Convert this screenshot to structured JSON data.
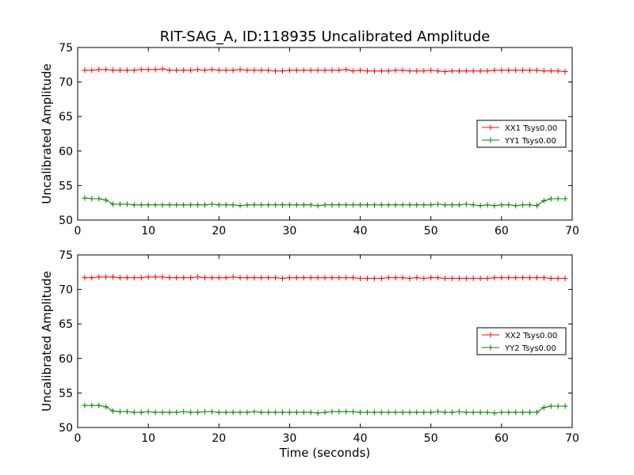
{
  "figure_title": "RIT-SAG_A, ID:118935 Uncalibrated Amplitude",
  "colors": {
    "xx": "#ff0000",
    "yy": "#008000"
  },
  "chart_data": [
    {
      "type": "line",
      "title": "RIT-SAG_A, ID:118935 Uncalibrated Amplitude",
      "xlabel": "",
      "ylabel": "Uncalibrated Amplitude",
      "xlim": [
        0,
        70
      ],
      "ylim": [
        50,
        75
      ],
      "xticks": [
        0,
        10,
        20,
        30,
        40,
        50,
        60,
        70
      ],
      "yticks": [
        50,
        55,
        60,
        65,
        70,
        75
      ],
      "legend_position": "right",
      "grid": false,
      "series": [
        {
          "name": "XX1 Tsys0.00",
          "color": "#ff0000",
          "x": [
            1,
            2,
            3,
            4,
            5,
            6,
            7,
            8,
            9,
            10,
            11,
            12,
            13,
            14,
            15,
            16,
            17,
            18,
            19,
            20,
            21,
            22,
            23,
            24,
            25,
            26,
            27,
            28,
            29,
            30,
            31,
            32,
            33,
            34,
            35,
            36,
            37,
            38,
            39,
            40,
            41,
            42,
            43,
            44,
            45,
            46,
            47,
            48,
            49,
            50,
            51,
            52,
            53,
            54,
            55,
            56,
            57,
            58,
            59,
            60,
            61,
            62,
            63,
            64,
            65,
            66,
            67,
            68,
            69
          ],
          "y": [
            71.7,
            71.7,
            71.8,
            71.8,
            71.7,
            71.7,
            71.7,
            71.7,
            71.8,
            71.8,
            71.8,
            71.9,
            71.7,
            71.7,
            71.7,
            71.7,
            71.8,
            71.7,
            71.8,
            71.7,
            71.7,
            71.7,
            71.8,
            71.7,
            71.7,
            71.7,
            71.7,
            71.6,
            71.6,
            71.7,
            71.7,
            71.7,
            71.7,
            71.7,
            71.7,
            71.7,
            71.7,
            71.8,
            71.6,
            71.7,
            71.6,
            71.6,
            71.6,
            71.6,
            71.7,
            71.7,
            71.6,
            71.6,
            71.6,
            71.7,
            71.6,
            71.5,
            71.6,
            71.6,
            71.6,
            71.6,
            71.6,
            71.6,
            71.7,
            71.7,
            71.7,
            71.7,
            71.7,
            71.7,
            71.7,
            71.6,
            71.6,
            71.6,
            71.5
          ]
        },
        {
          "name": "YY1 Tsys0.00",
          "color": "#008000",
          "x": [
            1,
            2,
            3,
            4,
            5,
            6,
            7,
            8,
            9,
            10,
            11,
            12,
            13,
            14,
            15,
            16,
            17,
            18,
            19,
            20,
            21,
            22,
            23,
            24,
            25,
            26,
            27,
            28,
            29,
            30,
            31,
            32,
            33,
            34,
            35,
            36,
            37,
            38,
            39,
            40,
            41,
            42,
            43,
            44,
            45,
            46,
            47,
            48,
            49,
            50,
            51,
            52,
            53,
            54,
            55,
            56,
            57,
            58,
            59,
            60,
            61,
            62,
            63,
            64,
            65,
            66,
            67,
            68,
            69
          ],
          "y": [
            53.2,
            53.1,
            53.1,
            52.9,
            52.3,
            52.3,
            52.3,
            52.2,
            52.2,
            52.2,
            52.2,
            52.2,
            52.2,
            52.2,
            52.2,
            52.2,
            52.2,
            52.2,
            52.3,
            52.2,
            52.2,
            52.2,
            52.1,
            52.2,
            52.2,
            52.2,
            52.2,
            52.2,
            52.2,
            52.2,
            52.2,
            52.2,
            52.2,
            52.1,
            52.2,
            52.2,
            52.2,
            52.2,
            52.2,
            52.2,
            52.2,
            52.2,
            52.2,
            52.2,
            52.2,
            52.2,
            52.2,
            52.2,
            52.2,
            52.2,
            52.3,
            52.2,
            52.2,
            52.2,
            52.3,
            52.2,
            52.1,
            52.2,
            52.1,
            52.2,
            52.2,
            52.1,
            52.2,
            52.2,
            52.1,
            52.8,
            53.1,
            53.1,
            53.1
          ]
        }
      ]
    },
    {
      "type": "line",
      "title": "",
      "xlabel": "Time (seconds)",
      "ylabel": "Uncalibrated Amplitude",
      "xlim": [
        0,
        70
      ],
      "ylim": [
        50,
        75
      ],
      "xticks": [
        0,
        10,
        20,
        30,
        40,
        50,
        60,
        70
      ],
      "yticks": [
        50,
        55,
        60,
        65,
        70,
        75
      ],
      "legend_position": "right",
      "grid": false,
      "series": [
        {
          "name": "XX2 Tsys0.00",
          "color": "#ff0000",
          "x": [
            1,
            2,
            3,
            4,
            5,
            6,
            7,
            8,
            9,
            10,
            11,
            12,
            13,
            14,
            15,
            16,
            17,
            18,
            19,
            20,
            21,
            22,
            23,
            24,
            25,
            26,
            27,
            28,
            29,
            30,
            31,
            32,
            33,
            34,
            35,
            36,
            37,
            38,
            39,
            40,
            41,
            42,
            43,
            44,
            45,
            46,
            47,
            48,
            49,
            50,
            51,
            52,
            53,
            54,
            55,
            56,
            57,
            58,
            59,
            60,
            61,
            62,
            63,
            64,
            65,
            66,
            67,
            68,
            69
          ],
          "y": [
            71.7,
            71.7,
            71.8,
            71.8,
            71.8,
            71.7,
            71.7,
            71.7,
            71.7,
            71.8,
            71.8,
            71.8,
            71.7,
            71.7,
            71.7,
            71.7,
            71.8,
            71.7,
            71.7,
            71.7,
            71.7,
            71.8,
            71.7,
            71.7,
            71.7,
            71.7,
            71.7,
            71.7,
            71.6,
            71.7,
            71.7,
            71.7,
            71.7,
            71.7,
            71.7,
            71.7,
            71.7,
            71.7,
            71.7,
            71.6,
            71.6,
            71.6,
            71.6,
            71.7,
            71.7,
            71.7,
            71.6,
            71.7,
            71.6,
            71.7,
            71.7,
            71.6,
            71.6,
            71.6,
            71.6,
            71.6,
            71.6,
            71.6,
            71.7,
            71.7,
            71.7,
            71.7,
            71.7,
            71.7,
            71.7,
            71.7,
            71.6,
            71.6,
            71.6
          ]
        },
        {
          "name": "YY2 Tsys0.00",
          "color": "#008000",
          "x": [
            1,
            2,
            3,
            4,
            5,
            6,
            7,
            8,
            9,
            10,
            11,
            12,
            13,
            14,
            15,
            16,
            17,
            18,
            19,
            20,
            21,
            22,
            23,
            24,
            25,
            26,
            27,
            28,
            29,
            30,
            31,
            32,
            33,
            34,
            35,
            36,
            37,
            38,
            39,
            40,
            41,
            42,
            43,
            44,
            45,
            46,
            47,
            48,
            49,
            50,
            51,
            52,
            53,
            54,
            55,
            56,
            57,
            58,
            59,
            60,
            61,
            62,
            63,
            64,
            65,
            66,
            67,
            68,
            69
          ],
          "y": [
            53.2,
            53.2,
            53.2,
            53.0,
            52.4,
            52.3,
            52.3,
            52.2,
            52.2,
            52.3,
            52.2,
            52.2,
            52.2,
            52.2,
            52.3,
            52.2,
            52.2,
            52.3,
            52.3,
            52.2,
            52.2,
            52.2,
            52.2,
            52.2,
            52.3,
            52.2,
            52.2,
            52.2,
            52.2,
            52.2,
            52.2,
            52.2,
            52.2,
            52.1,
            52.2,
            52.3,
            52.3,
            52.3,
            52.3,
            52.2,
            52.2,
            52.2,
            52.2,
            52.2,
            52.2,
            52.2,
            52.2,
            52.2,
            52.2,
            52.2,
            52.3,
            52.2,
            52.2,
            52.3,
            52.2,
            52.2,
            52.2,
            52.2,
            52.1,
            52.2,
            52.2,
            52.2,
            52.2,
            52.2,
            52.2,
            52.9,
            53.1,
            53.1,
            53.1
          ]
        }
      ]
    }
  ]
}
